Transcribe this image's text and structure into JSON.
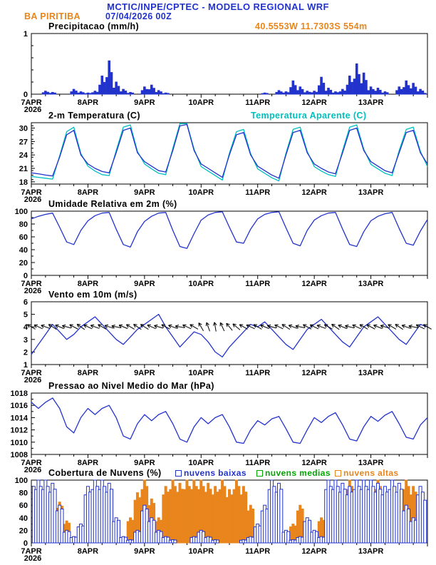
{
  "header": {
    "title": "MCTIC/INPE/CPTEC - MODELO REGIONAL WRF",
    "station": "BA PIRITIBA",
    "run": "07/04/2026 00Z",
    "location": "40.5553W 11.7303S 554m"
  },
  "colors": {
    "blue": "#2233cc",
    "cyan": "#00c0c0",
    "orange": "#e8851c",
    "green": "#00a800",
    "black": "#000000"
  },
  "axis": {
    "x_start_label": "7APR",
    "x_start_year": "2026",
    "day_labels": [
      "8APR",
      "9APR",
      "10APR",
      "11APR",
      "12APR",
      "13APR"
    ],
    "x_range_days": [
      0,
      7
    ],
    "x_step_hours": 3
  },
  "chart_data": [
    {
      "id": "precip",
      "type": "bar",
      "title": "Precipitacao (mm/h)",
      "ylim": [
        0,
        1
      ],
      "yticks": [
        0,
        1
      ],
      "ytick_minor": 0.2,
      "bar_color": "#2233cc",
      "values": [
        0,
        0,
        0.05,
        0.03,
        0,
        0,
        0.08,
        0.04,
        0.02,
        0.05,
        0.3,
        0.55,
        0.2,
        0.08,
        0.03,
        0,
        0.12,
        0.15,
        0.06,
        0.02,
        0,
        0,
        0,
        0,
        0,
        0,
        0,
        0,
        0,
        0,
        0,
        0,
        0,
        0.02,
        0,
        0.06,
        0.04,
        0.22,
        0.12,
        0.05,
        0.05,
        0.28,
        0.1,
        0.04,
        0.08,
        0.3,
        0.5,
        0.35,
        0.12,
        0.1,
        0.04,
        0,
        0.12,
        0.22,
        0.18,
        0.08,
        0.03
      ]
    },
    {
      "id": "temp",
      "type": "line",
      "title": "2-m Temperatura (C)",
      "right_label": "Temperatura Aparente (C)",
      "ylim": [
        17.5,
        31.2
      ],
      "yticks": [
        18,
        21,
        24,
        27,
        30
      ],
      "ytick_minor": 1,
      "series": [
        {
          "name": "2-m Temperatura (C)",
          "color": "#2233cc",
          "values": [
            20.0,
            19.8,
            19.5,
            19.3,
            23.5,
            28.5,
            29.5,
            24.0,
            22.0,
            21.0,
            20.3,
            20.0,
            24.5,
            29.5,
            30.0,
            24.5,
            22.5,
            21.5,
            20.5,
            20.2,
            25.0,
            30.5,
            30.8,
            25.0,
            22.0,
            21.0,
            20.0,
            19.0,
            24.0,
            28.5,
            29.0,
            24.0,
            21.5,
            20.5,
            19.5,
            18.8,
            24.0,
            29.0,
            29.5,
            24.5,
            22.0,
            21.0,
            20.2,
            19.8,
            24.5,
            29.5,
            30.0,
            25.0,
            22.5,
            21.5,
            20.5,
            20.0,
            24.5,
            29.0,
            29.5,
            24.5,
            22.0
          ]
        },
        {
          "name": "Temperatura Aparente (C)",
          "color": "#00c0c0",
          "values": [
            19.2,
            19.0,
            18.8,
            18.6,
            23.8,
            29.2,
            30.2,
            24.3,
            21.5,
            20.4,
            19.6,
            19.4,
            25.0,
            30.2,
            30.7,
            24.8,
            22.0,
            20.9,
            19.9,
            19.6,
            25.5,
            31.0,
            31.0,
            25.3,
            21.4,
            20.4,
            19.4,
            18.4,
            24.4,
            29.2,
            29.7,
            24.3,
            20.9,
            19.9,
            18.9,
            18.2,
            24.4,
            29.7,
            30.2,
            24.8,
            21.4,
            20.4,
            19.6,
            19.2,
            25.0,
            30.2,
            30.7,
            25.3,
            21.9,
            20.9,
            19.9,
            19.4,
            25.0,
            29.7,
            30.2,
            24.8,
            21.4
          ]
        }
      ]
    },
    {
      "id": "umid",
      "type": "line",
      "title": "Umidade Relativa em 2m (%)",
      "ylim": [
        0,
        100
      ],
      "yticks": [
        0,
        20,
        40,
        60,
        80,
        100
      ],
      "ytick_minor": 10,
      "series": [
        {
          "name": "Umidade Relativa",
          "color": "#2233cc",
          "values": [
            88,
            92,
            95,
            97,
            75,
            52,
            48,
            70,
            85,
            93,
            97,
            98,
            72,
            48,
            44,
            68,
            84,
            92,
            97,
            98,
            70,
            45,
            42,
            65,
            86,
            94,
            98,
            99,
            75,
            52,
            50,
            72,
            88,
            95,
            98,
            99,
            74,
            50,
            46,
            70,
            86,
            93,
            97,
            98,
            72,
            48,
            45,
            68,
            85,
            92,
            96,
            98,
            73,
            50,
            47,
            69,
            87
          ]
        }
      ]
    },
    {
      "id": "vento",
      "type": "line-barbs",
      "title": "Vento em 10m (m/s)",
      "ylim": [
        1,
        6
      ],
      "yticks": [
        1,
        2,
        3,
        4,
        5,
        6
      ],
      "barb_y_value": 4,
      "barb_angles_deg": [
        150,
        155,
        160,
        148,
        158,
        165,
        152,
        145,
        155,
        160,
        150,
        162,
        168,
        158,
        150,
        146,
        148,
        156,
        164,
        152,
        160,
        170,
        155,
        150,
        120,
        110,
        100,
        115,
        130,
        140,
        150,
        155,
        150,
        158,
        165,
        155,
        148,
        160,
        168,
        152,
        154,
        160,
        150,
        145,
        158,
        166,
        155,
        150,
        152,
        158,
        164,
        150,
        146,
        160,
        168,
        154,
        150
      ],
      "series": [
        {
          "name": "Vento 10m",
          "color": "#2233cc",
          "values": [
            1.8,
            2.6,
            3.4,
            4.2,
            3.6,
            3.0,
            3.4,
            4.0,
            4.4,
            4.8,
            4.2,
            3.6,
            3.0,
            2.6,
            3.2,
            3.8,
            4.2,
            4.6,
            5.0,
            4.0,
            3.2,
            2.4,
            3.0,
            3.6,
            3.4,
            2.8,
            2.0,
            1.6,
            2.4,
            3.0,
            3.6,
            4.2,
            4.0,
            4.4,
            3.8,
            3.2,
            2.6,
            2.2,
            3.0,
            3.8,
            4.2,
            4.6,
            4.0,
            3.4,
            2.8,
            2.4,
            3.2,
            4.0,
            4.4,
            4.8,
            4.2,
            3.6,
            3.0,
            2.6,
            3.4,
            4.2,
            4.0
          ]
        }
      ]
    },
    {
      "id": "pressao",
      "type": "line",
      "title": "Pressao ao Nivel Medio do Mar (hPa)",
      "ylim": [
        1008,
        1018
      ],
      "yticks": [
        1008,
        1010,
        1012,
        1014,
        1016,
        1018
      ],
      "ytick_minor": 1,
      "series": [
        {
          "name": "Pressao",
          "color": "#2233cc",
          "values": [
            1016.5,
            1015.5,
            1016.5,
            1017.2,
            1015.5,
            1012.5,
            1011.5,
            1014.0,
            1015.5,
            1014.5,
            1015.5,
            1016.0,
            1014.0,
            1011.0,
            1010.5,
            1013.0,
            1014.5,
            1013.5,
            1014.5,
            1015.0,
            1013.0,
            1010.5,
            1010.0,
            1012.5,
            1014.0,
            1013.0,
            1014.0,
            1014.5,
            1012.5,
            1010.0,
            1009.8,
            1012.0,
            1013.5,
            1012.8,
            1013.8,
            1014.2,
            1012.2,
            1010.0,
            1009.8,
            1012.0,
            1014.0,
            1013.2,
            1014.2,
            1014.8,
            1012.8,
            1010.5,
            1010.2,
            1012.5,
            1014.2,
            1013.4,
            1014.4,
            1015.0,
            1013.0,
            1010.8,
            1010.5,
            1012.8,
            1014.0
          ]
        }
      ]
    },
    {
      "id": "nuvens",
      "type": "bars-multi",
      "title": "Cobertura de Nuvens (%)",
      "ylim": [
        0,
        100
      ],
      "yticks": [
        0,
        20,
        40,
        60,
        80,
        100
      ],
      "ytick_minor": 10,
      "series": [
        {
          "name": "nuvens baixas",
          "color": "#2233cc",
          "style": "hollow",
          "values": [
            100,
            100,
            100,
            95,
            60,
            20,
            10,
            30,
            90,
            100,
            100,
            95,
            40,
            10,
            5,
            20,
            60,
            40,
            20,
            10,
            5,
            0,
            0,
            10,
            20,
            10,
            5,
            0,
            0,
            0,
            5,
            10,
            30,
            60,
            100,
            95,
            20,
            5,
            10,
            40,
            20,
            10,
            100,
            100,
            95,
            90,
            100,
            100,
            100,
            95,
            90,
            100,
            95,
            60,
            40,
            90,
            80
          ]
        },
        {
          "name": "nuvens medias",
          "color": "#00a800",
          "style": "solid",
          "values": [
            0,
            0,
            0,
            0,
            0,
            0,
            0,
            0,
            0,
            0,
            0,
            0,
            0,
            0,
            0,
            0,
            0,
            0,
            0,
            0,
            5,
            0,
            0,
            0,
            0,
            0,
            0,
            0,
            0,
            0,
            0,
            0,
            0,
            8,
            0,
            0,
            0,
            0,
            0,
            0,
            0,
            5,
            0,
            0,
            0,
            0,
            0,
            0,
            0,
            0,
            0,
            0,
            0,
            0,
            0,
            0,
            0
          ]
        },
        {
          "name": "nuvens altas",
          "color": "#e8851c",
          "style": "solid",
          "values": [
            0,
            0,
            5,
            40,
            65,
            35,
            10,
            0,
            0,
            20,
            55,
            35,
            0,
            10,
            40,
            80,
            100,
            70,
            40,
            90,
            100,
            95,
            100,
            100,
            100,
            95,
            90,
            100,
            85,
            100,
            90,
            60,
            30,
            10,
            5,
            0,
            10,
            30,
            60,
            40,
            20,
            40,
            90,
            100,
            95,
            100,
            90,
            100,
            95,
            100,
            60,
            30,
            70,
            100,
            90,
            60,
            50
          ]
        }
      ]
    }
  ]
}
